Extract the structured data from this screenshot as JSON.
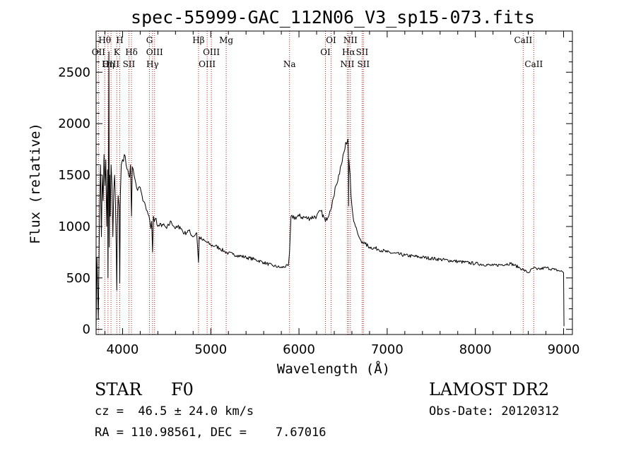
{
  "chart_data": {
    "type": "line",
    "title": "spec-55999-GAC_112N06_V3_sp15-073.fits",
    "xlabel": "Wavelength (Å)",
    "ylabel": "Flux (relative)",
    "xlim": [
      3700,
      9100
    ],
    "ylim": [
      -50,
      2900
    ],
    "xticks": [
      4000,
      5000,
      6000,
      7000,
      8000,
      9000
    ],
    "yticks": [
      0,
      500,
      1000,
      1500,
      2000,
      2500
    ],
    "grid": false,
    "series": [
      {
        "x": [
          3700,
          3710,
          3725,
          3740,
          3750,
          3760,
          3770,
          3780,
          3790,
          3800,
          3810,
          3820,
          3830,
          3835,
          3840,
          3845,
          3850,
          3855,
          3860,
          3870,
          3880,
          3890,
          3900,
          3910,
          3920,
          3930,
          3935,
          3940,
          3950,
          3960,
          3968,
          3975,
          3985,
          4000,
          4020,
          4040,
          4060,
          4080,
          4090,
          4101,
          4110,
          4130,
          4150,
          4170,
          4200,
          4230,
          4260,
          4280,
          4300,
          4320,
          4330,
          4340,
          4350,
          4360,
          4380,
          4400,
          4450,
          4500,
          4550,
          4600,
          4650,
          4700,
          4750,
          4800,
          4840,
          4861,
          4870,
          4900,
          4950,
          5000,
          5050,
          5100,
          5150,
          5200,
          5250,
          5300,
          5400,
          5500,
          5600,
          5700,
          5800,
          5880,
          5893,
          5900,
          5910,
          5930,
          6000,
          6100,
          6200,
          6250,
          6300,
          6350,
          6380,
          6400,
          6420,
          6450,
          6480,
          6500,
          6520,
          6540,
          6555,
          6560,
          6563,
          6566,
          6570,
          6580,
          6590,
          6600,
          6620,
          6640,
          6660,
          6680,
          6700,
          6720,
          6750,
          6800,
          6900,
          7000,
          7200,
          7400,
          7600,
          7800,
          8000,
          8200,
          8400,
          8500,
          8542,
          8600,
          8662,
          8700,
          8800,
          8900,
          8950,
          8990,
          9000,
          9005
        ],
        "y": [
          0,
          700,
          100,
          1200,
          1600,
          900,
          1500,
          1250,
          1700,
          1400,
          1650,
          1000,
          1550,
          500,
          1450,
          2700,
          800,
          1500,
          1100,
          1600,
          1400,
          900,
          1350,
          1500,
          1200,
          700,
          380,
          1000,
          1300,
          1200,
          450,
          1300,
          1600,
          1650,
          1700,
          1600,
          1550,
          1480,
          1600,
          1100,
          1580,
          1500,
          1420,
          1350,
          1380,
          1250,
          1200,
          1150,
          1100,
          980,
          1050,
          750,
          1100,
          1050,
          1080,
          1000,
          1020,
          980,
          1050,
          980,
          1000,
          930,
          960,
          900,
          940,
          650,
          900,
          870,
          850,
          820,
          810,
          790,
          760,
          740,
          730,
          720,
          700,
          680,
          650,
          620,
          600,
          620,
          750,
          900,
          1100,
          1080,
          1100,
          1080,
          1100,
          1150,
          1050,
          1150,
          1250,
          1300,
          1400,
          1500,
          1600,
          1700,
          1750,
          1800,
          1850,
          1700,
          1200,
          1650,
          1600,
          1500,
          1300,
          1200,
          1050,
          1000,
          950,
          900,
          870,
          850,
          830,
          800,
          780,
          750,
          720,
          700,
          680,
          660,
          640,
          620,
          640,
          600,
          580,
          550,
          600,
          580,
          600,
          580,
          570,
          560,
          550,
          30
        ]
      }
    ],
    "lines": [
      {
        "name": "Hθ",
        "x": 3798,
        "row": 0
      },
      {
        "name": "OII",
        "x": 3727,
        "row": 1
      },
      {
        "name": "OIII",
        "x": 3869,
        "row": 2
      },
      {
        "name": "Hη",
        "x": 3835,
        "row": 2
      },
      {
        "name": "H",
        "x": 3968,
        "row": 0
      },
      {
        "name": "K",
        "x": 3934,
        "row": 1
      },
      {
        "name": "Hδ",
        "x": 4101,
        "row": 1
      },
      {
        "name": "SII",
        "x": 4072,
        "row": 2
      },
      {
        "name": "G",
        "x": 4305,
        "row": 0
      },
      {
        "name": "OIII",
        "x": 4363,
        "row": 1
      },
      {
        "name": "Hγ",
        "x": 4340,
        "row": 2
      },
      {
        "name": "Hβ",
        "x": 4861,
        "row": 0
      },
      {
        "name": "OIII",
        "x": 5007,
        "row": 1
      },
      {
        "name": "OIII",
        "x": 4959,
        "row": 2
      },
      {
        "name": "Mg",
        "x": 5175,
        "row": 0
      },
      {
        "name": "Na",
        "x": 5893,
        "row": 2
      },
      {
        "name": "OI",
        "x": 6364,
        "row": 0
      },
      {
        "name": "OI",
        "x": 6300,
        "row": 1
      },
      {
        "name": "NII",
        "x": 6583,
        "row": 0
      },
      {
        "name": "Hα",
        "x": 6563,
        "row": 1
      },
      {
        "name": "SII",
        "x": 6716,
        "row": 1
      },
      {
        "name": "NII",
        "x": 6548,
        "row": 2
      },
      {
        "name": "SII",
        "x": 6731,
        "row": 2
      },
      {
        "name": "CaII",
        "x": 8542,
        "row": 0
      },
      {
        "name": "CaII",
        "x": 8662,
        "row": 2
      }
    ]
  },
  "info": {
    "class_label": "STAR",
    "subclass": "F0",
    "survey": "LAMOST DR2",
    "redshift": "cz =  46.5 ± 24.0 km/s",
    "obs_date": "Obs-Date: 20120312",
    "coords": "RA = 110.98561, DEC =    7.67016"
  }
}
